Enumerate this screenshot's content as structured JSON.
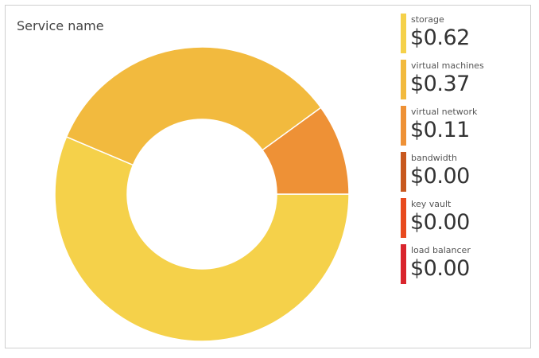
{
  "title": "Service name",
  "chart_data": {
    "type": "pie",
    "variant": "donut",
    "title": "Service name",
    "unit": "$",
    "series": [
      {
        "name": "storage",
        "value": 0.62,
        "label": "$0.62",
        "color": "#F5D14A"
      },
      {
        "name": "virtual machines",
        "value": 0.37,
        "label": "$0.37",
        "color": "#F2BA3E"
      },
      {
        "name": "virtual network",
        "value": 0.11,
        "label": "$0.11",
        "color": "#EE9136"
      },
      {
        "name": "bandwidth",
        "value": 0.0,
        "label": "$0.00",
        "color": "#C8581E"
      },
      {
        "name": "key vault",
        "value": 0.0,
        "label": "$0.00",
        "color": "#E84A1E"
      },
      {
        "name": "load balancer",
        "value": 0.0,
        "label": "$0.00",
        "color": "#D9252D"
      }
    ],
    "legend_position": "right"
  }
}
